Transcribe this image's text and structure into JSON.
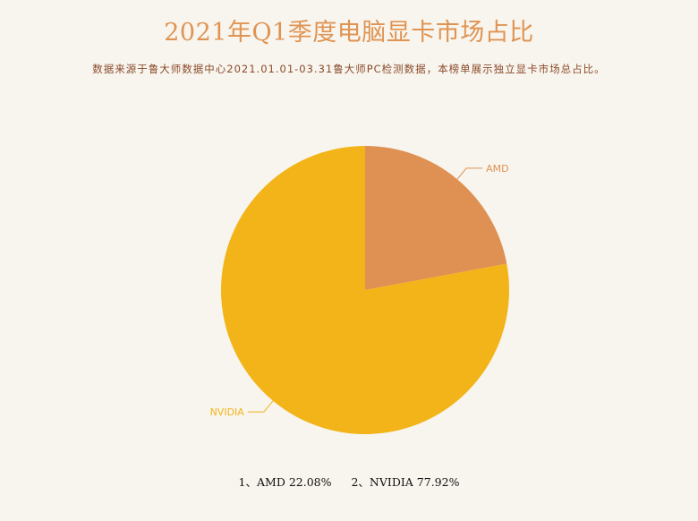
{
  "title": "2021年Q1季度电脑显卡市场占比",
  "subtitle": "数据来源于鲁大师数据中心2021.01.01-03.31鲁大师PC检测数据，本榜单展示独立显卡市场总占比。",
  "chart_data": {
    "type": "pie",
    "categories": [
      "AMD",
      "NVIDIA"
    ],
    "values": [
      22.08,
      77.92
    ],
    "unit": "%",
    "colors": [
      "#df9153",
      "#f2b418"
    ]
  },
  "footer": {
    "items": [
      "1、AMD 22.08%",
      "2、NVIDIA 77.92%"
    ]
  }
}
